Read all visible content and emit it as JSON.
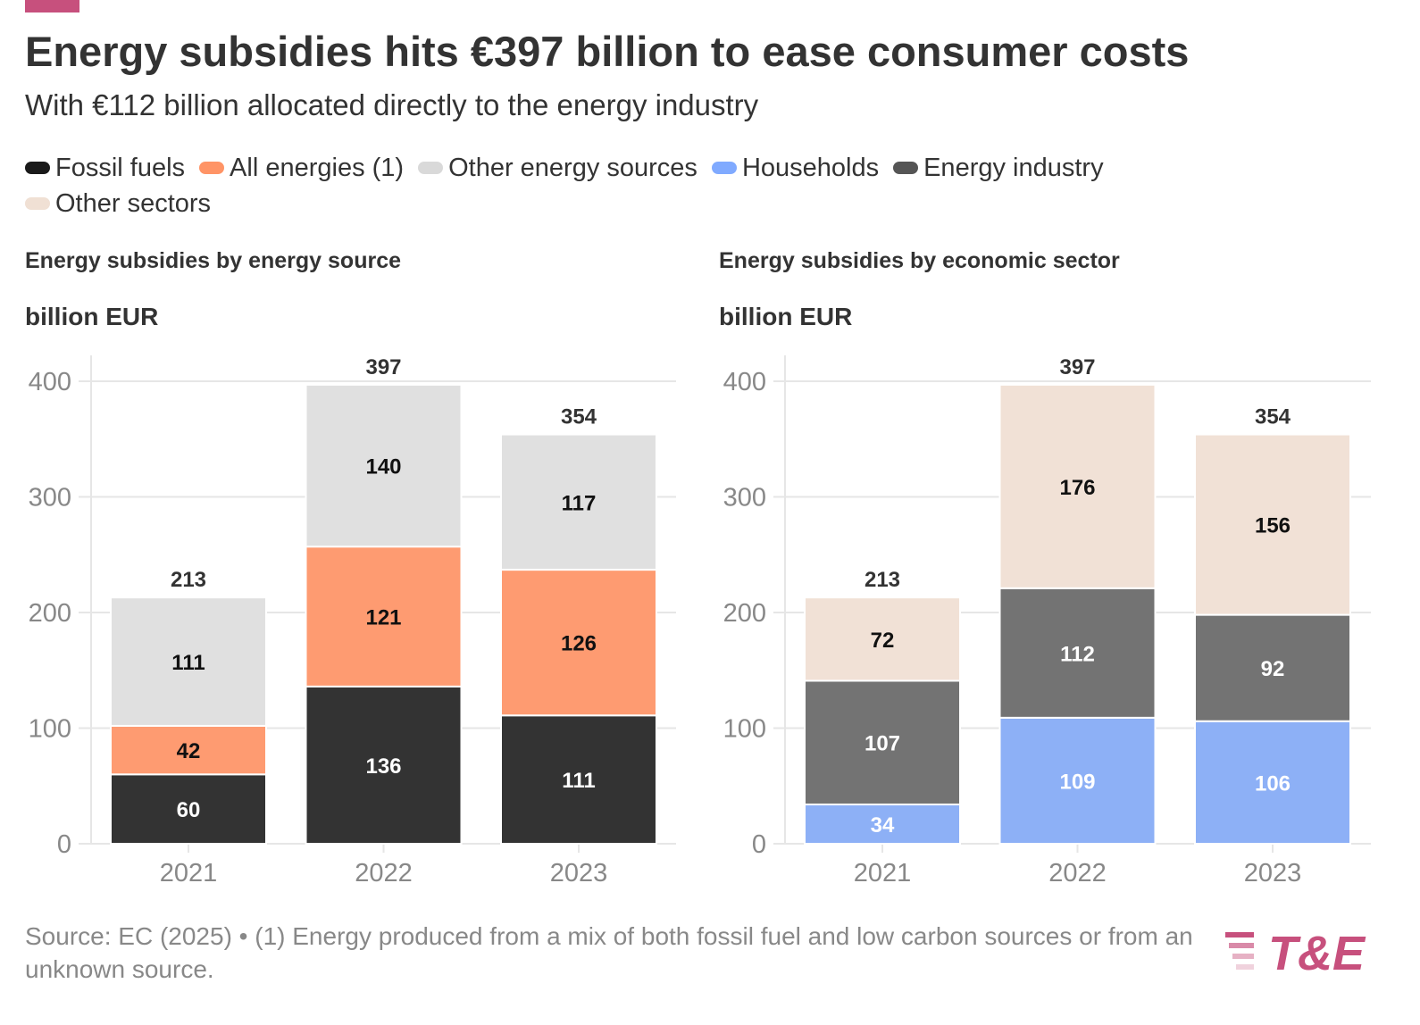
{
  "header": {
    "title": "Energy subsidies hits €397 billion to ease consumer costs",
    "subtitle": "With €112 billion allocated directly to the energy industry"
  },
  "legend": [
    {
      "label": "Fossil fuels",
      "color": "#1a1a1a"
    },
    {
      "label": "All energies (1)",
      "color": "#ff9466"
    },
    {
      "label": "Other energy sources",
      "color": "#d9d9d9"
    },
    {
      "label": "Households",
      "color": "#80aaff"
    },
    {
      "label": "Energy industry",
      "color": "#555555"
    },
    {
      "label": "Other sectors",
      "color": "#f0e0d4"
    }
  ],
  "chart_data": [
    {
      "type": "bar",
      "stacked": true,
      "title": "Energy subsidies by energy source",
      "ylabel": "billion EUR",
      "categories": [
        "2021",
        "2022",
        "2023"
      ],
      "yticks": [
        0,
        100,
        200,
        300,
        400
      ],
      "ylim": [
        0,
        420
      ],
      "totals": [
        213,
        397,
        354
      ],
      "series": [
        {
          "name": "Fossil fuels",
          "values": [
            60,
            136,
            111
          ],
          "color": "#333333",
          "label_color": "#ffffff"
        },
        {
          "name": "All energies (1)",
          "values": [
            42,
            121,
            126
          ],
          "color": "#fe9b71",
          "label_color": "#111111"
        },
        {
          "name": "Other energy sources",
          "values": [
            111,
            140,
            117
          ],
          "color": "#e0e0e0",
          "label_color": "#111111"
        }
      ]
    },
    {
      "type": "bar",
      "stacked": true,
      "title": "Energy subsidies by economic sector",
      "ylabel": "billion EUR",
      "categories": [
        "2021",
        "2022",
        "2023"
      ],
      "yticks": [
        0,
        100,
        200,
        300,
        400
      ],
      "ylim": [
        0,
        420
      ],
      "totals": [
        213,
        397,
        354
      ],
      "series": [
        {
          "name": "Households",
          "values": [
            34,
            109,
            106
          ],
          "color": "#8db0f6",
          "label_color": "#ffffff"
        },
        {
          "name": "Energy industry",
          "values": [
            107,
            112,
            92
          ],
          "color": "#737373",
          "label_color": "#ffffff"
        },
        {
          "name": "Other sectors",
          "values": [
            72,
            176,
            156
          ],
          "color": "#f1e1d6",
          "label_color": "#111111"
        }
      ]
    }
  ],
  "footer": {
    "source": "Source: EC (2025) • (1) Energy produced from a mix of both fossil fuel and low carbon sources or from an unknown source."
  },
  "logo": {
    "text": "T&E",
    "color": "#c7507d"
  }
}
